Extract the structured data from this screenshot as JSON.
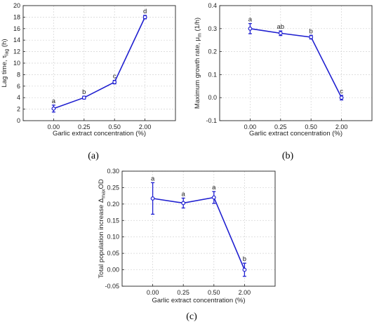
{
  "colors": {
    "series": "#1f1fd0",
    "grid": "#d3d3d3",
    "axis": "#222222"
  },
  "chart_data": [
    {
      "type": "line",
      "panel": "(a)",
      "categories": [
        "0.00",
        "0.25",
        "0.50",
        "2.00"
      ],
      "values": [
        2.1,
        4.0,
        6.7,
        18.0
      ],
      "errors": [
        0.6,
        0.25,
        0.3,
        0.3
      ],
      "significance": [
        "a",
        "b",
        "c",
        "d"
      ],
      "xlabel": "Garlic extract concentration (%)",
      "ylabel_parts": {
        "main": "Lag time, τ",
        "sub": "lag",
        "tail": " (h)"
      },
      "ylim": [
        0,
        20
      ],
      "yticks": [
        "0",
        "2",
        "4",
        "6",
        "8",
        "10",
        "12",
        "14",
        "16",
        "18",
        "20"
      ],
      "grid": true,
      "legend": "none"
    },
    {
      "type": "line",
      "panel": "(b)",
      "categories": [
        "0.00",
        "0.25",
        "0.50",
        "2.00"
      ],
      "values": [
        0.3,
        0.28,
        0.263,
        0.0
      ],
      "errors": [
        0.022,
        0.01,
        0.008,
        0.01
      ],
      "significance": [
        "a",
        "ab",
        "b",
        "c"
      ],
      "xlabel": "Garlic extract concentration (%)",
      "ylabel_parts": {
        "main": "Maximum growth rate, μ",
        "sub": "m",
        "tail": " (1/h)"
      },
      "ylim": [
        -0.1,
        0.4
      ],
      "yticks": [
        "-0.1",
        "0.0",
        "0.1",
        "0.2",
        "0.3",
        "0.4"
      ],
      "grid": true,
      "legend": "none"
    },
    {
      "type": "line",
      "panel": "(c)",
      "categories": [
        "0.00",
        "0.25",
        "0.50",
        "2.00"
      ],
      "values": [
        0.217,
        0.203,
        0.22,
        0.0
      ],
      "errors": [
        0.048,
        0.015,
        0.018,
        0.02
      ],
      "significance": [
        "a",
        "a",
        "a",
        "b"
      ],
      "xlabel": "Garlic extract concentration (%)",
      "ylabel_parts": {
        "main": "Total population increase Δ",
        "sub": "max",
        "tail": "OD"
      },
      "ylim": [
        -0.05,
        0.3
      ],
      "yticks": [
        "-0.05",
        "0.00",
        "0.05",
        "0.10",
        "0.15",
        "0.20",
        "0.25",
        "0.30"
      ],
      "grid": true,
      "legend": "none"
    }
  ]
}
